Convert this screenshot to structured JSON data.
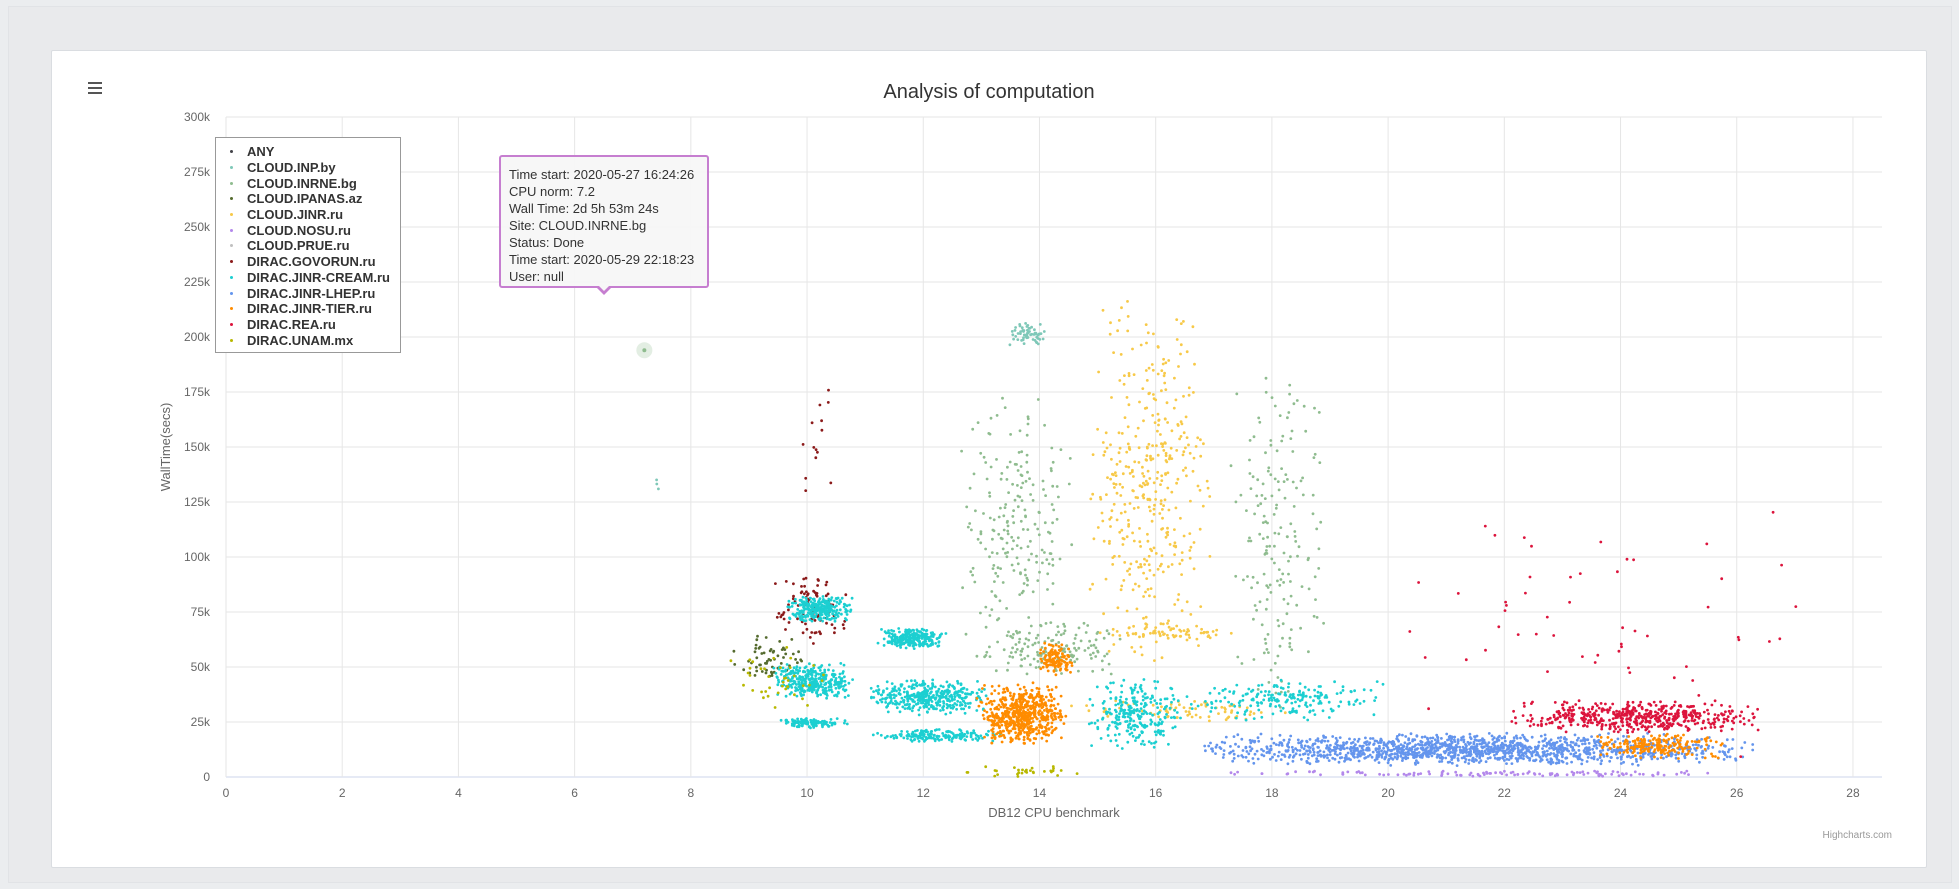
{
  "chart_data": {
    "type": "scatter",
    "title": "Analysis of computation",
    "xlabel": "DB12 CPU benchmark",
    "ylabel": "WallTime(secs)",
    "xlim": [
      0,
      28.5
    ],
    "ylim": [
      0,
      300000
    ],
    "xticks": [
      "0",
      "2",
      "4",
      "6",
      "8",
      "10",
      "12",
      "14",
      "16",
      "18",
      "20",
      "22",
      "24",
      "26",
      "28"
    ],
    "yticks": [
      "0",
      "25k",
      "50k",
      "75k",
      "100k",
      "125k",
      "150k",
      "175k",
      "200k",
      "225k",
      "250k",
      "275k",
      "300k"
    ],
    "grid": true,
    "legend_position": "top-left",
    "series": [
      {
        "name": "ANY",
        "color": "#434348",
        "clusters": []
      },
      {
        "name": "CLOUD.INP.by",
        "color": "#7fc8b8",
        "clusters": [
          {
            "x": [
              13.4,
              14.2
            ],
            "y": [
              195000,
              207000
            ],
            "n": 60
          },
          {
            "x": [
              7.3,
              7.5
            ],
            "y": [
              130000,
              136000
            ],
            "n": 3
          }
        ]
      },
      {
        "name": "CLOUD.INRNE.bg",
        "color": "#8fbc8f",
        "clusters": [
          {
            "x": [
              12.6,
              14.6
            ],
            "y": [
              40000,
              180000
            ],
            "n": 220
          },
          {
            "x": [
              17.2,
              19.0
            ],
            "y": [
              30000,
              190000
            ],
            "n": 180
          },
          {
            "x": [
              13.0,
              15.5
            ],
            "y": [
              45000,
              72000
            ],
            "n": 140
          }
        ],
        "points": [
          [
            7.2,
            194000
          ]
        ]
      },
      {
        "name": "CLOUD.IPANAS.az",
        "color": "#556b2f",
        "clusters": [
          {
            "x": [
              8.6,
              10.0
            ],
            "y": [
              40000,
              65000
            ],
            "n": 60
          }
        ]
      },
      {
        "name": "CLOUD.JINR.ru",
        "color": "#f7c948",
        "clusters": [
          {
            "x": [
              14.8,
              17.0
            ],
            "y": [
              40000,
              225000
            ],
            "n": 400
          },
          {
            "x": [
              15.0,
              17.5
            ],
            "y": [
              62000,
              70000
            ],
            "n": 60
          },
          {
            "x": [
              14.5,
              18.5
            ],
            "y": [
              25000,
              35000
            ],
            "n": 80
          }
        ]
      },
      {
        "name": "CLOUD.NOSU.ru",
        "color": "#b388eb",
        "clusters": [
          {
            "x": [
              17.0,
              26.5
            ],
            "y": [
              0,
              3000
            ],
            "n": 120
          }
        ]
      },
      {
        "name": "CLOUD.PRUE.ru",
        "color": "#c0c0c0",
        "clusters": []
      },
      {
        "name": "DIRAC.GOVORUN.ru",
        "color": "#8b1a1a",
        "clusters": [
          {
            "x": [
              9.4,
              10.8
            ],
            "y": [
              60000,
              95000
            ],
            "n": 90
          },
          {
            "x": [
              9.8,
              10.6
            ],
            "y": [
              110000,
              205000
            ],
            "n": 14
          }
        ]
      },
      {
        "name": "DIRAC.JINR-CREAM.ru",
        "color": "#1ccfd1",
        "clusters": [
          {
            "x": [
              9.6,
              10.8
            ],
            "y": [
              70000,
              83000
            ],
            "n": 260
          },
          {
            "x": [
              11.2,
              12.4
            ],
            "y": [
              58000,
              68000
            ],
            "n": 260
          },
          {
            "x": [
              9.4,
              10.8
            ],
            "y": [
              35000,
              52000
            ],
            "n": 320
          },
          {
            "x": [
              11.0,
              13.2
            ],
            "y": [
              28000,
              45000
            ],
            "n": 380
          },
          {
            "x": [
              9.5,
              10.7
            ],
            "y": [
              22000,
              27000
            ],
            "n": 120
          },
          {
            "x": [
              11.0,
              13.5
            ],
            "y": [
              16000,
              22000
            ],
            "n": 160
          },
          {
            "x": [
              14.8,
              16.5
            ],
            "y": [
              12000,
              45000
            ],
            "n": 260
          },
          {
            "x": [
              16.5,
              20.0
            ],
            "y": [
              25000,
              45000
            ],
            "n": 200
          }
        ]
      },
      {
        "name": "DIRAC.JINR-LHEP.ru",
        "color": "#6495ed",
        "clusters": [
          {
            "x": [
              16.5,
              26.5
            ],
            "y": [
              5000,
              20000
            ],
            "n": 1400
          }
        ]
      },
      {
        "name": "DIRAC.JINR-TIER.ru",
        "color": "#ff8c00",
        "clusters": [
          {
            "x": [
              12.9,
              14.5
            ],
            "y": [
              14000,
              43000
            ],
            "n": 600
          },
          {
            "x": [
              14.0,
              14.6
            ],
            "y": [
              45000,
              62000
            ],
            "n": 120
          },
          {
            "x": [
              23.5,
              25.8
            ],
            "y": [
              8000,
              20000
            ],
            "n": 200
          }
        ]
      },
      {
        "name": "DIRAC.REA.ru",
        "color": "#dc143c",
        "clusters": [
          {
            "x": [
              22.0,
              26.5
            ],
            "y": [
              20000,
              35000
            ],
            "n": 500
          },
          {
            "x": [
              19.5,
              28.0
            ],
            "y": [
              0,
              135000
            ],
            "n": 60
          }
        ]
      },
      {
        "name": "DIRAC.UNAM.mx",
        "color": "#b8b800",
        "clusters": [
          {
            "x": [
              8.5,
              10.5
            ],
            "y": [
              30000,
              60000
            ],
            "n": 40
          },
          {
            "x": [
              12.5,
              15.0
            ],
            "y": [
              0,
              5000
            ],
            "n": 30
          }
        ]
      }
    ]
  },
  "ui": {
    "credits": "Highcharts.com",
    "menu_icon": "hamburger-icon"
  },
  "tooltip": {
    "lines": [
      "Time start: 2020-05-27 16:24:26",
      "CPU norm: 7.2",
      "Wall Time: 2d 5h 53m 24s",
      "Site: CLOUD.INRNE.bg",
      "Status: Done",
      "Time start: 2020-05-29 22:18:23",
      "User: null"
    ]
  }
}
